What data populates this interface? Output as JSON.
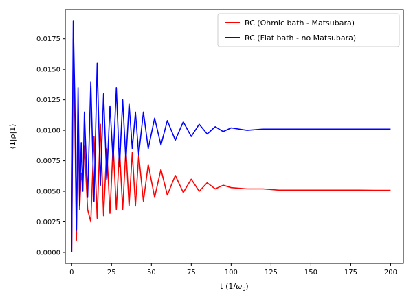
{
  "chart_data": {
    "type": "line",
    "title": "",
    "xlabel_main": "t (1/",
    "xlabel_symbol": "ω",
    "xlabel_sub": "0",
    "xlabel_close": ")",
    "ylabel": "⟨1|ρ|1⟩",
    "xlim": [
      -4,
      208
    ],
    "ylim": [
      -0.0009,
      0.0199
    ],
    "xticks": [
      0,
      25,
      50,
      75,
      100,
      125,
      150,
      175,
      200
    ],
    "yticks": [
      0.0,
      0.0025,
      0.005,
      0.0075,
      0.01,
      0.0125,
      0.015,
      0.0175
    ],
    "ytick_labels": [
      "0.0000",
      "0.0025",
      "0.0050",
      "0.0075",
      "0.0100",
      "0.0125",
      "0.0150",
      "0.0175"
    ],
    "xtick_labels": [
      "0",
      "25",
      "50",
      "75",
      "100",
      "125",
      "150",
      "175",
      "200"
    ],
    "grid": false,
    "legend_position": "top-right",
    "series": [
      {
        "name": "RC (Ohmic bath - Matsubara)",
        "color": "#ff0000",
        "x": [
          0,
          1,
          2,
          3,
          4,
          5,
          6,
          7,
          8,
          10,
          12,
          14,
          16,
          18,
          20,
          22,
          24,
          26,
          28,
          30,
          32,
          34,
          36,
          38,
          40,
          42,
          45,
          48,
          52,
          56,
          60,
          65,
          70,
          75,
          80,
          85,
          90,
          95,
          100,
          110,
          120,
          130,
          140,
          150,
          160,
          170,
          180,
          190,
          200
        ],
        "values": [
          0.0,
          0.0175,
          0.011,
          0.001,
          0.012,
          0.0035,
          0.0065,
          0.0055,
          0.0087,
          0.0035,
          0.0025,
          0.0095,
          0.0028,
          0.0105,
          0.003,
          0.0085,
          0.0032,
          0.0088,
          0.0035,
          0.0085,
          0.0035,
          0.0085,
          0.0038,
          0.0082,
          0.0038,
          0.008,
          0.0042,
          0.0072,
          0.0045,
          0.0068,
          0.0047,
          0.0063,
          0.0049,
          0.006,
          0.005,
          0.0057,
          0.0052,
          0.0055,
          0.0053,
          0.0052,
          0.0052,
          0.0051,
          0.0051,
          0.0051,
          0.0051,
          0.0051,
          0.0051,
          0.00508,
          0.00508
        ]
      },
      {
        "name": "RC (Flat bath - no Matsubara)",
        "color": "#0000ff",
        "x": [
          0,
          1,
          2,
          3,
          4,
          5,
          6,
          7,
          8,
          10,
          12,
          14,
          16,
          18,
          20,
          22,
          24,
          26,
          28,
          30,
          32,
          34,
          36,
          38,
          40,
          42,
          45,
          48,
          52,
          56,
          60,
          65,
          70,
          75,
          80,
          85,
          90,
          95,
          100,
          110,
          120,
          130,
          140,
          150,
          160,
          170,
          180,
          190,
          200
        ],
        "values": [
          0.0,
          0.019,
          0.0125,
          0.0018,
          0.0135,
          0.0038,
          0.009,
          0.005,
          0.0115,
          0.0045,
          0.014,
          0.0042,
          0.0155,
          0.0055,
          0.013,
          0.006,
          0.012,
          0.0075,
          0.0135,
          0.007,
          0.0125,
          0.0075,
          0.0122,
          0.0085,
          0.0115,
          0.008,
          0.0115,
          0.0085,
          0.011,
          0.0088,
          0.0108,
          0.0092,
          0.0107,
          0.0095,
          0.0105,
          0.0097,
          0.0103,
          0.0099,
          0.0102,
          0.01,
          0.0101,
          0.0101,
          0.0101,
          0.0101,
          0.0101,
          0.0101,
          0.0101,
          0.0101,
          0.0101
        ]
      }
    ]
  }
}
